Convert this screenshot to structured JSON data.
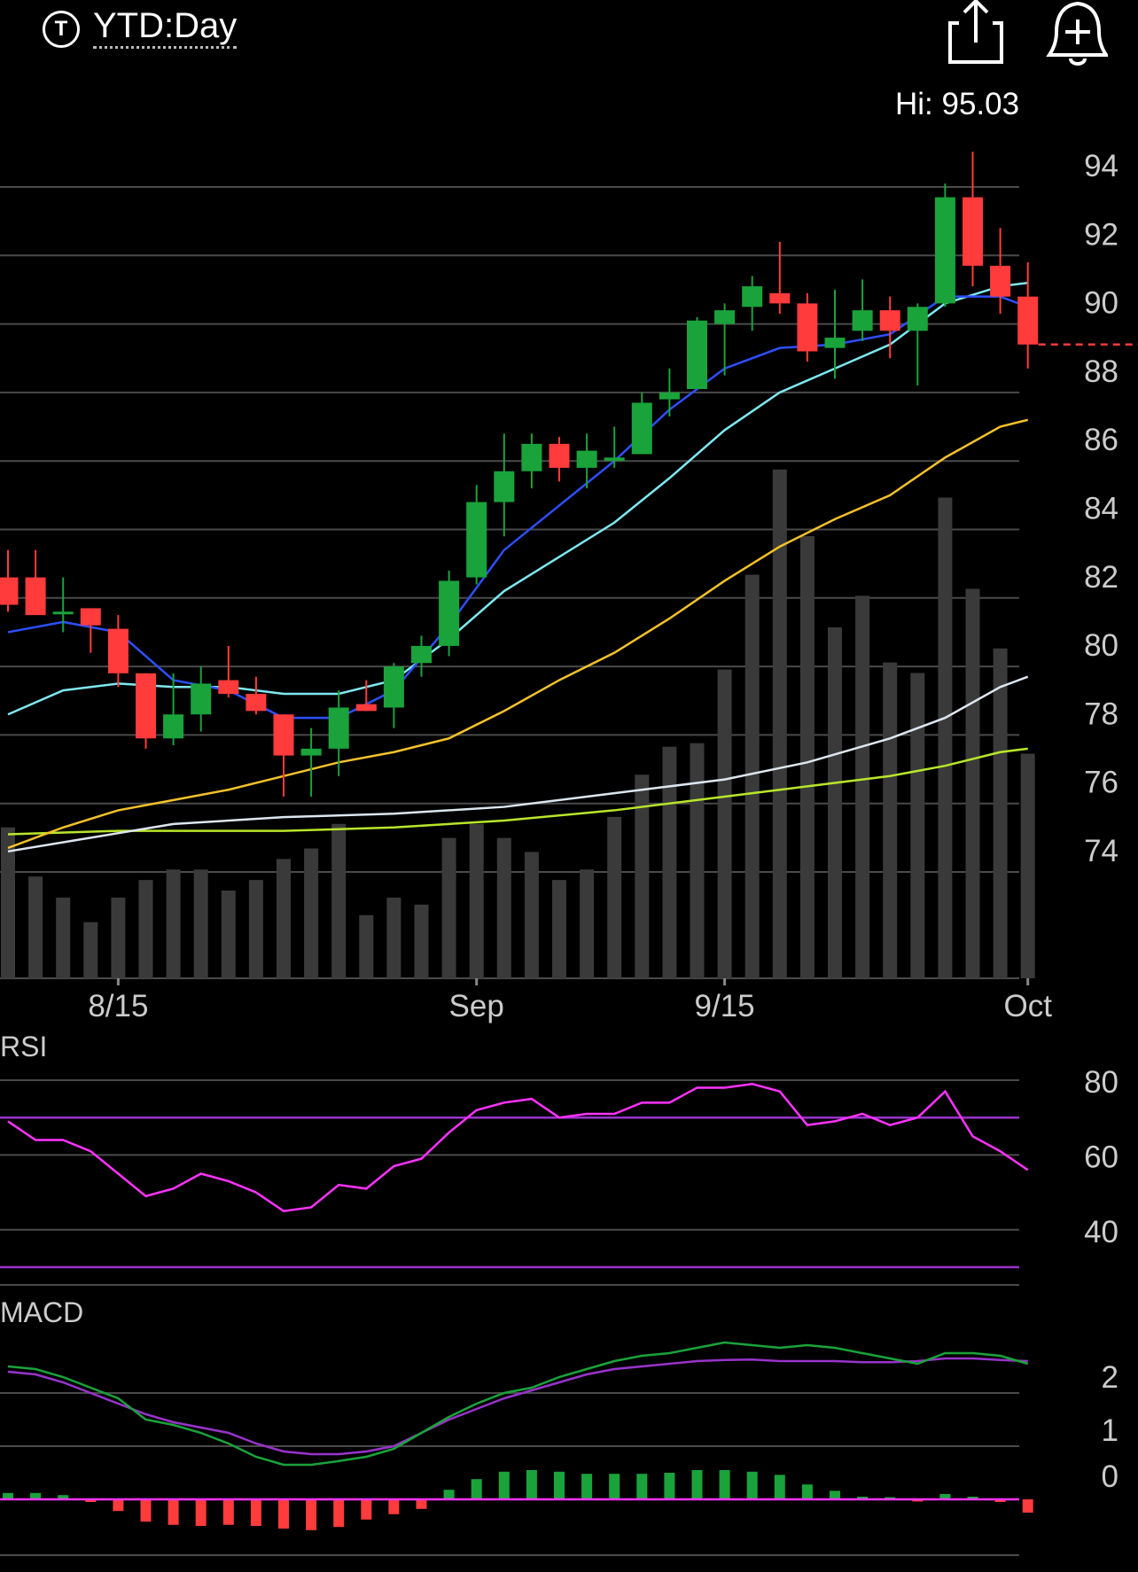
{
  "header": {
    "ticker_badge": "T",
    "range_label": "YTD:Day",
    "share_icon": "share-icon",
    "alert_icon": "add-alert-bell-icon"
  },
  "colors": {
    "background": "#000000",
    "up": "#1aa33a",
    "down": "#ff3b3b",
    "grid": "#4a4a4a",
    "volume": "#3a3a3a",
    "sma_fast": "#2d4fff",
    "sma_mid": "#7fe8f0",
    "sma_50": "#f5c22a",
    "sma_100": "#dde6f0",
    "sma_200": "#b8e62a",
    "rsi": "#ff33ff",
    "rsi_bands": "#9933cc",
    "macd": "#1aa33a",
    "signal": "#9933cc",
    "zero_line": "#ff33ff"
  },
  "chart_data": [
    {
      "type": "candlestick",
      "hi_label": "Hi: 95.03",
      "y_ticks": [
        "94",
        "92",
        "90",
        "88",
        "86",
        "84",
        "82",
        "80",
        "78",
        "76",
        "74"
      ],
      "ylim": [
        71.5,
        96
      ],
      "x_tick_labels": [
        "8/15",
        "Sep",
        "9/15",
        "Oct"
      ],
      "x_tick_index": [
        4,
        17,
        26,
        37
      ],
      "last_price": 89.4,
      "candles": [
        {
          "o": 82.6,
          "h": 83.4,
          "l": 81.6,
          "c": 81.8
        },
        {
          "o": 82.6,
          "h": 83.4,
          "l": 81.6,
          "c": 81.5
        },
        {
          "o": 81.6,
          "h": 82.6,
          "l": 81.0,
          "c": 81.6
        },
        {
          "o": 81.7,
          "h": 81.7,
          "l": 80.4,
          "c": 81.2
        },
        {
          "o": 81.1,
          "h": 81.5,
          "l": 79.4,
          "c": 79.8
        },
        {
          "o": 79.8,
          "h": 79.8,
          "l": 77.6,
          "c": 77.9
        },
        {
          "o": 77.9,
          "h": 79.8,
          "l": 77.7,
          "c": 78.6
        },
        {
          "o": 78.6,
          "h": 80.0,
          "l": 78.1,
          "c": 79.5
        },
        {
          "o": 79.6,
          "h": 80.6,
          "l": 79.1,
          "c": 79.2
        },
        {
          "o": 79.2,
          "h": 79.7,
          "l": 78.6,
          "c": 78.7
        },
        {
          "o": 78.6,
          "h": 78.6,
          "l": 76.2,
          "c": 77.4
        },
        {
          "o": 77.4,
          "h": 78.2,
          "l": 76.2,
          "c": 77.6
        },
        {
          "o": 77.6,
          "h": 79.3,
          "l": 76.8,
          "c": 78.8
        },
        {
          "o": 78.9,
          "h": 79.6,
          "l": 78.7,
          "c": 78.7
        },
        {
          "o": 78.8,
          "h": 80.1,
          "l": 78.2,
          "c": 80.0
        },
        {
          "o": 80.1,
          "h": 80.9,
          "l": 79.7,
          "c": 80.6
        },
        {
          "o": 80.6,
          "h": 82.8,
          "l": 80.3,
          "c": 82.5
        },
        {
          "o": 82.6,
          "h": 85.3,
          "l": 82.4,
          "c": 84.8
        },
        {
          "o": 84.8,
          "h": 86.8,
          "l": 83.8,
          "c": 85.7
        },
        {
          "o": 85.7,
          "h": 86.8,
          "l": 85.2,
          "c": 86.5
        },
        {
          "o": 86.5,
          "h": 86.7,
          "l": 85.4,
          "c": 85.8
        },
        {
          "o": 85.8,
          "h": 86.8,
          "l": 85.2,
          "c": 86.3
        },
        {
          "o": 86.0,
          "h": 87.0,
          "l": 85.8,
          "c": 86.1
        },
        {
          "o": 86.2,
          "h": 88.0,
          "l": 86.2,
          "c": 87.7
        },
        {
          "o": 87.8,
          "h": 88.7,
          "l": 87.3,
          "c": 88.0
        },
        {
          "o": 88.1,
          "h": 90.2,
          "l": 88.1,
          "c": 90.1
        },
        {
          "o": 90.0,
          "h": 90.6,
          "l": 88.5,
          "c": 90.4
        },
        {
          "o": 90.5,
          "h": 91.4,
          "l": 89.8,
          "c": 91.1
        },
        {
          "o": 90.9,
          "h": 92.4,
          "l": 90.3,
          "c": 90.6
        },
        {
          "o": 90.6,
          "h": 90.9,
          "l": 88.9,
          "c": 89.2
        },
        {
          "o": 89.3,
          "h": 91.0,
          "l": 88.4,
          "c": 89.6
        },
        {
          "o": 89.8,
          "h": 91.3,
          "l": 89.5,
          "c": 90.4
        },
        {
          "o": 90.4,
          "h": 90.8,
          "l": 89.0,
          "c": 89.8
        },
        {
          "o": 89.8,
          "h": 90.6,
          "l": 88.2,
          "c": 90.5
        },
        {
          "o": 90.6,
          "h": 94.1,
          "l": 90.5,
          "c": 93.7
        },
        {
          "o": 93.7,
          "h": 95.03,
          "l": 91.1,
          "c": 91.7
        },
        {
          "o": 91.7,
          "h": 92.8,
          "l": 90.3,
          "c": 90.8
        },
        {
          "o": 90.8,
          "h": 91.8,
          "l": 88.7,
          "c": 89.4
        }
      ],
      "volume": [
        0.43,
        0.29,
        0.23,
        0.16,
        0.23,
        0.28,
        0.31,
        0.31,
        0.25,
        0.28,
        0.34,
        0.37,
        0.44,
        0.18,
        0.23,
        0.21,
        0.4,
        0.44,
        0.4,
        0.36,
        0.28,
        0.31,
        0.46,
        0.58,
        0.66,
        0.67,
        0.88,
        1.15,
        1.45,
        1.26,
        1.0,
        1.09,
        0.9,
        0.87,
        1.37,
        1.11,
        0.94,
        0.64
      ],
      "ma_fast": [
        [
          0,
          81.0
        ],
        [
          2,
          81.3
        ],
        [
          4,
          81.0
        ],
        [
          6,
          79.6
        ],
        [
          8,
          79.3
        ],
        [
          10,
          78.5
        ],
        [
          12,
          78.5
        ],
        [
          14,
          79.3
        ],
        [
          16,
          81.2
        ],
        [
          18,
          83.4
        ],
        [
          20,
          84.7
        ],
        [
          22,
          86.0
        ],
        [
          24,
          87.5
        ],
        [
          26,
          88.7
        ],
        [
          28,
          89.3
        ],
        [
          30,
          89.4
        ],
        [
          32,
          89.7
        ],
        [
          34,
          90.8
        ],
        [
          36,
          90.8
        ],
        [
          37,
          90.5
        ]
      ],
      "ma_mid": [
        [
          0,
          78.6
        ],
        [
          2,
          79.3
        ],
        [
          4,
          79.5
        ],
        [
          6,
          79.4
        ],
        [
          8,
          79.4
        ],
        [
          10,
          79.2
        ],
        [
          12,
          79.2
        ],
        [
          14,
          79.6
        ],
        [
          16,
          80.8
        ],
        [
          18,
          82.2
        ],
        [
          20,
          83.2
        ],
        [
          22,
          84.2
        ],
        [
          24,
          85.5
        ],
        [
          26,
          86.9
        ],
        [
          28,
          88.0
        ],
        [
          30,
          88.7
        ],
        [
          32,
          89.4
        ],
        [
          34,
          90.6
        ],
        [
          36,
          91.1
        ],
        [
          37,
          91.2
        ]
      ],
      "ma_50": [
        [
          0,
          74.7
        ],
        [
          2,
          75.3
        ],
        [
          4,
          75.8
        ],
        [
          6,
          76.1
        ],
        [
          8,
          76.4
        ],
        [
          10,
          76.8
        ],
        [
          12,
          77.2
        ],
        [
          14,
          77.5
        ],
        [
          16,
          77.9
        ],
        [
          18,
          78.7
        ],
        [
          20,
          79.6
        ],
        [
          22,
          80.4
        ],
        [
          24,
          81.4
        ],
        [
          26,
          82.5
        ],
        [
          28,
          83.5
        ],
        [
          30,
          84.3
        ],
        [
          32,
          85.0
        ],
        [
          34,
          86.1
        ],
        [
          36,
          87.0
        ],
        [
          37,
          87.2
        ]
      ],
      "ma_100": [
        [
          0,
          74.6
        ],
        [
          3,
          75.0
        ],
        [
          6,
          75.4
        ],
        [
          10,
          75.6
        ],
        [
          14,
          75.7
        ],
        [
          18,
          75.9
        ],
        [
          22,
          76.3
        ],
        [
          26,
          76.7
        ],
        [
          29,
          77.2
        ],
        [
          32,
          77.9
        ],
        [
          34,
          78.5
        ],
        [
          36,
          79.4
        ],
        [
          37,
          79.7
        ]
      ],
      "ma_200": [
        [
          0,
          75.1
        ],
        [
          4,
          75.2
        ],
        [
          10,
          75.2
        ],
        [
          14,
          75.3
        ],
        [
          18,
          75.5
        ],
        [
          22,
          75.8
        ],
        [
          26,
          76.2
        ],
        [
          29,
          76.5
        ],
        [
          32,
          76.8
        ],
        [
          34,
          77.1
        ],
        [
          36,
          77.5
        ],
        [
          37,
          77.6
        ]
      ]
    },
    {
      "type": "line",
      "title": "RSI",
      "y_ticks": [
        "80",
        "60",
        "40"
      ],
      "ylim": [
        25,
        85
      ],
      "upper_band": 70,
      "lower_band": 30,
      "values": [
        69,
        64,
        64,
        61,
        55,
        49,
        51,
        55,
        53,
        50,
        45,
        46,
        52,
        51,
        57,
        59,
        66,
        72,
        74,
        75,
        70,
        71,
        71,
        74,
        74,
        78,
        78,
        79,
        77,
        68,
        69,
        71,
        68,
        70,
        77,
        65,
        61,
        56
      ]
    },
    {
      "type": "line",
      "title": "MACD",
      "y_ticks": [
        "2",
        "1",
        "0"
      ],
      "ylim": [
        -1.3,
        3.7
      ],
      "macd": [
        2.5,
        2.45,
        2.3,
        2.1,
        1.9,
        1.5,
        1.4,
        1.25,
        1.05,
        0.8,
        0.65,
        0.65,
        0.72,
        0.8,
        0.95,
        1.25,
        1.55,
        1.8,
        2.0,
        2.1,
        2.3,
        2.45,
        2.6,
        2.7,
        2.75,
        2.85,
        2.95,
        2.9,
        2.85,
        2.9,
        2.85,
        2.75,
        2.65,
        2.55,
        2.75,
        2.75,
        2.7,
        2.55
      ],
      "signal": [
        2.4,
        2.35,
        2.2,
        2.0,
        1.8,
        1.6,
        1.45,
        1.35,
        1.25,
        1.05,
        0.9,
        0.85,
        0.85,
        0.9,
        1.0,
        1.25,
        1.5,
        1.7,
        1.9,
        2.05,
        2.2,
        2.35,
        2.45,
        2.5,
        2.55,
        2.6,
        2.62,
        2.63,
        2.6,
        2.6,
        2.6,
        2.58,
        2.58,
        2.6,
        2.65,
        2.65,
        2.62,
        2.6
      ],
      "histogram": [
        0.12,
        0.12,
        0.08,
        -0.05,
        -0.22,
        -0.42,
        -0.48,
        -0.5,
        -0.48,
        -0.5,
        -0.55,
        -0.58,
        -0.52,
        -0.38,
        -0.28,
        -0.18,
        0.18,
        0.38,
        0.52,
        0.55,
        0.52,
        0.48,
        0.48,
        0.48,
        0.5,
        0.55,
        0.55,
        0.52,
        0.46,
        0.28,
        0.16,
        0.05,
        0.04,
        -0.04,
        0.1,
        0.05,
        -0.05,
        -0.25
      ]
    }
  ]
}
